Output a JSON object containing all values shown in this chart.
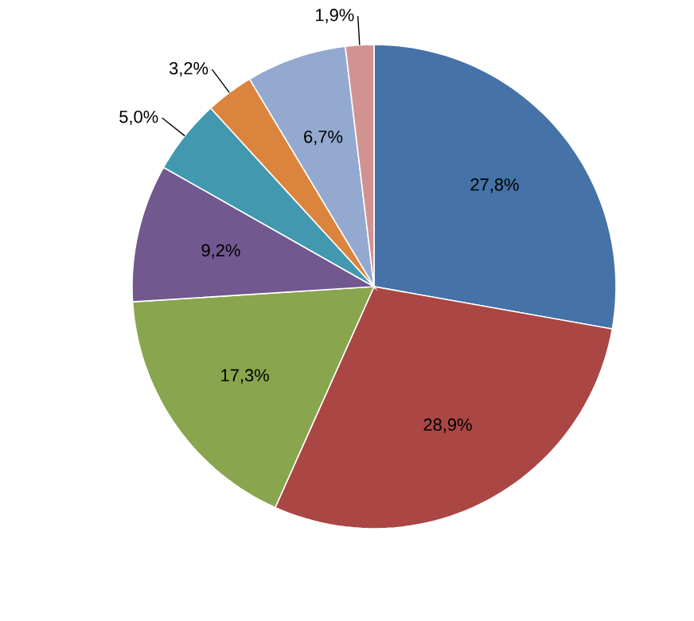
{
  "chart_data": {
    "type": "pie",
    "categories": [
      null,
      null,
      null,
      null,
      null,
      null,
      null,
      null
    ],
    "values": [
      27.8,
      28.9,
      17.3,
      9.2,
      5.0,
      3.2,
      6.7,
      1.9
    ],
    "colors": [
      "#4572a7",
      "#aa4643",
      "#89a54e",
      "#71588f",
      "#4198af",
      "#db843d",
      "#93a9cf",
      "#d19392"
    ],
    "value_labels": [
      "27,8%",
      "28,9%",
      "17,3%",
      "9,2%",
      "5,0%",
      "3,2%",
      "6,7%",
      "1,9%"
    ]
  }
}
